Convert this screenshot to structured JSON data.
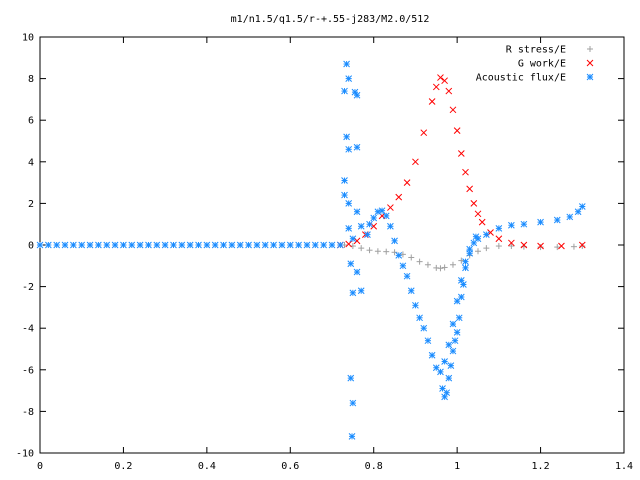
{
  "chart_data": {
    "type": "scatter",
    "title": "m1/n1.5/q1.5/r-+.55-j283/M2.0/512",
    "xlabel": "",
    "ylabel": "",
    "xlim": [
      0,
      1.4
    ],
    "ylim": [
      -10,
      10
    ],
    "x_ticks": [
      "0",
      "0.2",
      "0.4",
      "0.6",
      "0.8",
      "1",
      "1.2",
      "1.4"
    ],
    "y_ticks": [
      "10",
      "8",
      "6",
      "4",
      "2",
      "0",
      "-2",
      "-4",
      "-6",
      "-8",
      "-10"
    ],
    "grid": false,
    "legend_position": "top-right",
    "series": [
      {
        "name": "R stress/E",
        "marker": "plus",
        "color": "#a0a0a0",
        "points": [
          [
            0.73,
            0.0
          ],
          [
            0.75,
            -0.05
          ],
          [
            0.77,
            -0.15
          ],
          [
            0.79,
            -0.25
          ],
          [
            0.81,
            -0.3
          ],
          [
            0.83,
            -0.32
          ],
          [
            0.85,
            -0.35
          ],
          [
            0.87,
            -0.45
          ],
          [
            0.89,
            -0.6
          ],
          [
            0.91,
            -0.8
          ],
          [
            0.93,
            -0.95
          ],
          [
            0.95,
            -1.1
          ],
          [
            0.96,
            -1.12
          ],
          [
            0.97,
            -1.08
          ],
          [
            0.99,
            -0.95
          ],
          [
            1.01,
            -0.75
          ],
          [
            1.03,
            -0.5
          ],
          [
            1.05,
            -0.3
          ],
          [
            1.07,
            -0.15
          ],
          [
            1.1,
            -0.05
          ],
          [
            1.13,
            -0.05
          ],
          [
            1.16,
            -0.08
          ],
          [
            1.2,
            -0.1
          ],
          [
            1.24,
            -0.1
          ],
          [
            1.28,
            -0.08
          ],
          [
            1.3,
            -0.05
          ]
        ]
      },
      {
        "name": "G work/E",
        "marker": "cross",
        "color": "#ff0000",
        "points": [
          [
            0.72,
            0.0
          ],
          [
            0.74,
            0.05
          ],
          [
            0.76,
            0.2
          ],
          [
            0.78,
            0.5
          ],
          [
            0.8,
            0.9
          ],
          [
            0.82,
            1.4
          ],
          [
            0.84,
            1.8
          ],
          [
            0.86,
            2.3
          ],
          [
            0.88,
            3.0
          ],
          [
            0.9,
            4.0
          ],
          [
            0.92,
            5.4
          ],
          [
            0.94,
            6.9
          ],
          [
            0.95,
            7.6
          ],
          [
            0.96,
            8.05
          ],
          [
            0.97,
            7.9
          ],
          [
            0.98,
            7.4
          ],
          [
            0.99,
            6.5
          ],
          [
            1.0,
            5.5
          ],
          [
            1.01,
            4.4
          ],
          [
            1.02,
            3.5
          ],
          [
            1.03,
            2.7
          ],
          [
            1.04,
            2.0
          ],
          [
            1.05,
            1.5
          ],
          [
            1.06,
            1.1
          ],
          [
            1.08,
            0.6
          ],
          [
            1.1,
            0.3
          ],
          [
            1.13,
            0.1
          ],
          [
            1.16,
            0.0
          ],
          [
            1.2,
            -0.05
          ],
          [
            1.25,
            -0.05
          ],
          [
            1.3,
            0.0
          ]
        ]
      },
      {
        "name": "Acoustic flux/E",
        "marker": "star",
        "color": "#1a8cff",
        "points": [
          [
            0.735,
            8.7
          ],
          [
            0.74,
            8.0
          ],
          [
            0.73,
            7.4
          ],
          [
            0.755,
            7.35
          ],
          [
            0.76,
            7.2
          ],
          [
            0.735,
            5.2
          ],
          [
            0.74,
            4.6
          ],
          [
            0.76,
            4.7
          ],
          [
            0.73,
            3.1
          ],
          [
            0.74,
            2.0
          ],
          [
            0.73,
            2.4
          ],
          [
            0.76,
            1.6
          ],
          [
            0.74,
            0.8
          ],
          [
            0.75,
            0.3
          ],
          [
            0.745,
            -0.9
          ],
          [
            0.76,
            -1.3
          ],
          [
            0.75,
            -2.3
          ],
          [
            0.77,
            -2.2
          ],
          [
            0.745,
            -6.4
          ],
          [
            0.75,
            -7.6
          ],
          [
            0.748,
            -9.2
          ],
          [
            0.77,
            0.9
          ],
          [
            0.785,
            0.5
          ],
          [
            0.79,
            1.0
          ],
          [
            0.8,
            1.3
          ],
          [
            0.81,
            1.6
          ],
          [
            0.82,
            1.65
          ],
          [
            0.83,
            1.4
          ],
          [
            0.84,
            0.9
          ],
          [
            0.85,
            0.2
          ],
          [
            0.86,
            -0.5
          ],
          [
            0.87,
            -1.0
          ],
          [
            0.88,
            -1.5
          ],
          [
            0.89,
            -2.2
          ],
          [
            0.9,
            -2.9
          ],
          [
            0.91,
            -3.5
          ],
          [
            0.92,
            -4.0
          ],
          [
            0.93,
            -4.6
          ],
          [
            0.94,
            -5.3
          ],
          [
            0.95,
            -5.9
          ],
          [
            0.96,
            -6.1
          ],
          [
            0.97,
            -5.6
          ],
          [
            0.98,
            -4.8
          ],
          [
            0.99,
            -3.8
          ],
          [
            1.0,
            -2.7
          ],
          [
            1.01,
            -1.7
          ],
          [
            1.02,
            -0.8
          ],
          [
            1.03,
            -0.2
          ],
          [
            1.05,
            0.3
          ],
          [
            1.07,
            0.5
          ],
          [
            1.1,
            0.8
          ],
          [
            1.13,
            0.95
          ],
          [
            1.16,
            1.0
          ],
          [
            1.2,
            1.1
          ],
          [
            1.24,
            1.2
          ],
          [
            1.27,
            1.35
          ],
          [
            1.29,
            1.6
          ],
          [
            1.3,
            1.85
          ],
          [
            0.97,
            -7.3
          ],
          [
            0.975,
            -7.1
          ],
          [
            0.965,
            -6.9
          ],
          [
            0.98,
            -6.4
          ],
          [
            0.985,
            -5.8
          ],
          [
            0.99,
            -5.1
          ],
          [
            0.995,
            -4.6
          ],
          [
            1.0,
            -4.2
          ],
          [
            1.005,
            -3.5
          ],
          [
            1.01,
            -2.5
          ],
          [
            1.015,
            -1.9
          ],
          [
            1.02,
            -1.1
          ],
          [
            1.03,
            -0.4
          ],
          [
            1.04,
            0.1
          ],
          [
            1.045,
            0.4
          ]
        ]
      },
      {
        "name": "",
        "marker": "star",
        "color": "#1a8cff",
        "points": [
          [
            0.0,
            0.0
          ],
          [
            0.02,
            0.0
          ],
          [
            0.04,
            0.0
          ],
          [
            0.06,
            0.0
          ],
          [
            0.08,
            0.0
          ],
          [
            0.1,
            0.0
          ],
          [
            0.12,
            0.0
          ],
          [
            0.14,
            0.0
          ],
          [
            0.16,
            0.0
          ],
          [
            0.18,
            0.0
          ],
          [
            0.2,
            0.0
          ],
          [
            0.22,
            0.0
          ],
          [
            0.24,
            0.0
          ],
          [
            0.26,
            0.0
          ],
          [
            0.28,
            0.0
          ],
          [
            0.3,
            0.0
          ],
          [
            0.32,
            0.0
          ],
          [
            0.34,
            0.0
          ],
          [
            0.36,
            0.0
          ],
          [
            0.38,
            0.0
          ],
          [
            0.4,
            0.0
          ],
          [
            0.42,
            0.0
          ],
          [
            0.44,
            0.0
          ],
          [
            0.46,
            0.0
          ],
          [
            0.48,
            0.0
          ],
          [
            0.5,
            0.0
          ],
          [
            0.52,
            0.0
          ],
          [
            0.54,
            0.0
          ],
          [
            0.56,
            0.0
          ],
          [
            0.58,
            0.0
          ],
          [
            0.6,
            0.0
          ],
          [
            0.62,
            0.0
          ],
          [
            0.64,
            0.0
          ],
          [
            0.66,
            0.0
          ],
          [
            0.68,
            0.0
          ],
          [
            0.7,
            0.0
          ],
          [
            0.72,
            0.0
          ]
        ]
      }
    ]
  }
}
